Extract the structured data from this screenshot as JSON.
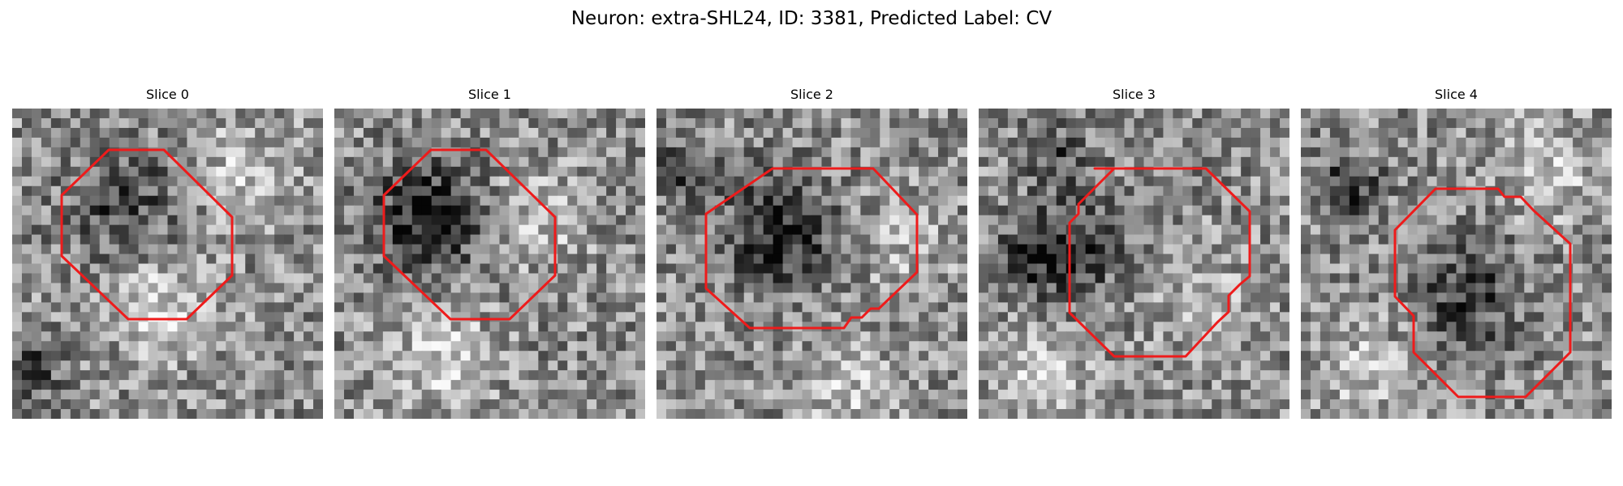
{
  "figure": {
    "title": "Neuron: extra-SHL24, ID: 3381, Predicted Label: CV"
  },
  "colors": {
    "contour": "#ee1b1b",
    "background": "#ffffff"
  },
  "panels": [
    {
      "title": "Slice 0",
      "seed": 11,
      "dark_center": [
        0.35,
        0.3
      ],
      "dark_strength": 0.28,
      "light_zones": [
        [
          0.75,
          0.2,
          0.3
        ],
        [
          0.5,
          0.65,
          0.35
        ]
      ],
      "dark_zones": [
        [
          0.05,
          0.85,
          0.15
        ]
      ]
    },
    {
      "title": "Slice 1",
      "seed": 23,
      "dark_center": [
        0.3,
        0.35
      ],
      "dark_strength": 0.45,
      "light_zones": [
        [
          0.65,
          0.35,
          0.25
        ],
        [
          0.35,
          0.8,
          0.35
        ]
      ],
      "dark_zones": []
    },
    {
      "title": "Slice 2",
      "seed": 37,
      "dark_center": [
        0.4,
        0.4
      ],
      "dark_strength": 0.42,
      "light_zones": [
        [
          0.8,
          0.45,
          0.2
        ],
        [
          0.6,
          0.9,
          0.25
        ]
      ],
      "dark_zones": [
        [
          0.1,
          0.2,
          0.15
        ]
      ]
    },
    {
      "title": "Slice 3",
      "seed": 53,
      "dark_center": [
        0.3,
        0.45
      ],
      "dark_strength": 0.32,
      "light_zones": [
        [
          0.7,
          0.6,
          0.2
        ],
        [
          0.2,
          0.85,
          0.3
        ]
      ],
      "dark_zones": [
        [
          0.15,
          0.5,
          0.12
        ],
        [
          0.25,
          0.15,
          0.12
        ]
      ]
    },
    {
      "title": "Slice 4",
      "seed": 71,
      "dark_center": [
        0.55,
        0.6
      ],
      "dark_strength": 0.3,
      "light_zones": [
        [
          0.8,
          0.2,
          0.3
        ],
        [
          0.2,
          0.85,
          0.25
        ]
      ],
      "dark_zones": [
        [
          0.15,
          0.25,
          0.18
        ]
      ]
    }
  ]
}
